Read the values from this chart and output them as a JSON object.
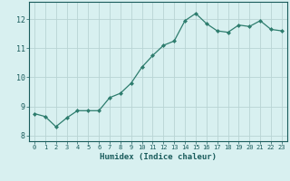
{
  "x": [
    0,
    1,
    2,
    3,
    4,
    5,
    6,
    7,
    8,
    9,
    10,
    11,
    12,
    13,
    14,
    15,
    16,
    17,
    18,
    19,
    20,
    21,
    22,
    23
  ],
  "y": [
    8.75,
    8.65,
    8.3,
    8.6,
    8.85,
    8.85,
    8.85,
    9.3,
    9.45,
    9.8,
    10.35,
    10.75,
    11.1,
    11.25,
    11.95,
    12.2,
    11.85,
    11.6,
    11.55,
    11.8,
    11.75,
    11.95,
    11.65,
    11.6
  ],
  "xlabel": "Humidex (Indice chaleur)",
  "ylim": [
    7.8,
    12.6
  ],
  "xlim": [
    -0.5,
    23.5
  ],
  "yticks": [
    8,
    9,
    10,
    11,
    12
  ],
  "xticks": [
    0,
    1,
    2,
    3,
    4,
    5,
    6,
    7,
    8,
    9,
    10,
    11,
    12,
    13,
    14,
    15,
    16,
    17,
    18,
    19,
    20,
    21,
    22,
    23
  ],
  "line_color": "#2e7d6e",
  "bg_color": "#d8f0f0",
  "grid_color": "#b8d4d4",
  "tick_label_color": "#1a5c5c",
  "xlabel_color": "#1a5c5c",
  "marker": "D",
  "marker_size": 2.0,
  "line_width": 0.9
}
